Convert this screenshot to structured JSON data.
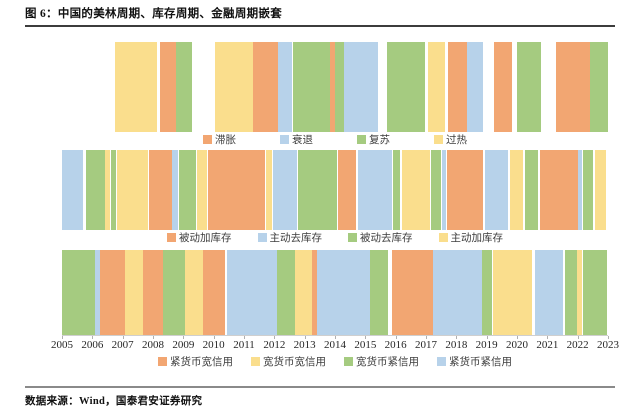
{
  "header": {
    "title": "图 6：中国的美林周期、库存周期、金融周期嵌套"
  },
  "footer": {
    "source": "数据来源：Wind，国泰君安证券研究"
  },
  "chart_data": {
    "type": "bar",
    "subtype": "categorical-timeline-bands",
    "title": "中国的美林周期、库存周期、金融周期嵌套",
    "x_axis": {
      "min": 2005,
      "max": 2023,
      "ticks": [
        "2005",
        "2006",
        "2007",
        "2008",
        "2009",
        "2010",
        "2011",
        "2012",
        "2013",
        "2014",
        "2015",
        "2016",
        "2017",
        "2018",
        "2019",
        "2020",
        "2021",
        "2022",
        "2023"
      ]
    },
    "colors": {
      "orange": "#F2A672",
      "yellow": "#FADE8D",
      "green": "#A5CB80",
      "blue": "#B7D2EA"
    },
    "strips": [
      {
        "name": "美林周期",
        "legend": [
          {
            "label": "滞胀",
            "color": "orange"
          },
          {
            "label": "衰退",
            "color": "blue"
          },
          {
            "label": "复苏",
            "color": "green"
          },
          {
            "label": "过热",
            "color": "yellow"
          }
        ],
        "segments": [
          {
            "phase": "过热",
            "color": "yellow",
            "from": 2006.75,
            "to": 2008.13
          },
          {
            "phase": "滞胀",
            "color": "orange",
            "from": 2008.23,
            "to": 2008.76
          },
          {
            "phase": "复苏",
            "color": "green",
            "from": 2008.76,
            "to": 2009.29
          },
          {
            "phase": "过热",
            "color": "yellow",
            "from": 2010.04,
            "to": 2011.3
          },
          {
            "phase": "滞胀",
            "color": "orange",
            "from": 2011.3,
            "to": 2012.12
          },
          {
            "phase": "衰退",
            "color": "blue",
            "from": 2012.12,
            "to": 2012.58
          },
          {
            "phase": "复苏",
            "color": "green",
            "from": 2012.62,
            "to": 2013.84
          },
          {
            "phase": "滞胀",
            "color": "orange",
            "from": 2013.84,
            "to": 2014.0
          },
          {
            "phase": "复苏",
            "color": "green",
            "from": 2014.0,
            "to": 2014.3
          },
          {
            "phase": "衰退",
            "color": "blue",
            "from": 2014.3,
            "to": 2015.42
          },
          {
            "phase": "复苏",
            "color": "green",
            "from": 2015.72,
            "to": 2016.97
          },
          {
            "phase": "过热",
            "color": "yellow",
            "from": 2017.07,
            "to": 2017.63
          },
          {
            "phase": "滞胀",
            "color": "orange",
            "from": 2017.73,
            "to": 2018.35
          },
          {
            "phase": "衰退",
            "color": "blue",
            "from": 2018.35,
            "to": 2018.88
          },
          {
            "phase": "滞胀",
            "color": "orange",
            "from": 2019.24,
            "to": 2019.84
          },
          {
            "phase": "复苏",
            "color": "green",
            "from": 2020.0,
            "to": 2020.79
          },
          {
            "phase": "滞胀",
            "color": "orange",
            "from": 2021.29,
            "to": 2022.41
          },
          {
            "phase": "复苏",
            "color": "green",
            "from": 2022.41,
            "to": 2023.0
          }
        ]
      },
      {
        "name": "库存周期",
        "legend": [
          {
            "label": "被动加库存",
            "color": "orange"
          },
          {
            "label": "主动去库存",
            "color": "blue"
          },
          {
            "label": "被动去库存",
            "color": "green"
          },
          {
            "label": "主动加库存",
            "color": "yellow"
          }
        ],
        "segments": [
          {
            "phase": "主动去库存",
            "color": "blue",
            "from": 2005.0,
            "to": 2005.69
          },
          {
            "phase": "被动去库存",
            "color": "green",
            "from": 2005.79,
            "to": 2006.42
          },
          {
            "phase": "主动加库存",
            "color": "yellow",
            "from": 2006.42,
            "to": 2006.58
          },
          {
            "phase": "被动去库存",
            "color": "green",
            "from": 2006.62,
            "to": 2006.78
          },
          {
            "phase": "主动加库存",
            "color": "yellow",
            "from": 2006.81,
            "to": 2007.84
          },
          {
            "phase": "被动加库存",
            "color": "orange",
            "from": 2007.87,
            "to": 2008.63
          },
          {
            "phase": "主动去库存",
            "color": "blue",
            "from": 2008.63,
            "to": 2008.82
          },
          {
            "phase": "被动去库存",
            "color": "green",
            "from": 2008.86,
            "to": 2009.42
          },
          {
            "phase": "主动加库存",
            "color": "yellow",
            "from": 2009.45,
            "to": 2009.78
          },
          {
            "phase": "被动加库存",
            "color": "orange",
            "from": 2009.81,
            "to": 2011.69
          },
          {
            "phase": "主动加库存",
            "color": "yellow",
            "from": 2011.73,
            "to": 2011.92
          },
          {
            "phase": "主动去库存",
            "color": "blue",
            "from": 2011.96,
            "to": 2012.75
          },
          {
            "phase": "被动去库存",
            "color": "green",
            "from": 2012.78,
            "to": 2014.07
          },
          {
            "phase": "被动加库存",
            "color": "orange",
            "from": 2014.1,
            "to": 2014.69
          },
          {
            "phase": "主动去库存",
            "color": "blue",
            "from": 2014.76,
            "to": 2015.88
          },
          {
            "phase": "被动去库存",
            "color": "green",
            "from": 2015.91,
            "to": 2016.14
          },
          {
            "phase": "主动加库存",
            "color": "yellow",
            "from": 2016.21,
            "to": 2017.13
          },
          {
            "phase": "被动去库存",
            "color": "green",
            "from": 2017.17,
            "to": 2017.5
          },
          {
            "phase": "主动去库存",
            "color": "blue",
            "from": 2017.53,
            "to": 2017.66
          },
          {
            "phase": "被动加库存",
            "color": "orange",
            "from": 2017.69,
            "to": 2018.88
          },
          {
            "phase": "主动去库存",
            "color": "blue",
            "from": 2018.95,
            "to": 2019.7
          },
          {
            "phase": "主动加库存",
            "color": "yellow",
            "from": 2019.77,
            "to": 2020.2
          },
          {
            "phase": "被动去库存",
            "color": "green",
            "from": 2020.27,
            "to": 2020.69
          },
          {
            "phase": "被动加库存",
            "color": "orange",
            "from": 2020.76,
            "to": 2022.01
          },
          {
            "phase": "主动去库存",
            "color": "blue",
            "from": 2022.01,
            "to": 2022.14
          },
          {
            "phase": "被动去库存",
            "color": "green",
            "from": 2022.18,
            "to": 2022.51
          },
          {
            "phase": "主动加库存",
            "color": "yellow",
            "from": 2022.57,
            "to": 2022.94
          }
        ]
      },
      {
        "name": "金融周期",
        "legend": [
          {
            "label": "紧货币宽信用",
            "color": "orange"
          },
          {
            "label": "宽货币宽信用",
            "color": "yellow"
          },
          {
            "label": "宽货币紧信用",
            "color": "green"
          },
          {
            "label": "紧货币紧信用",
            "color": "blue"
          }
        ],
        "segments": [
          {
            "phase": "宽货币紧信用",
            "color": "green",
            "from": 2005.0,
            "to": 2006.09
          },
          {
            "phase": "紧货币紧信用",
            "color": "blue",
            "from": 2006.09,
            "to": 2006.25
          },
          {
            "phase": "紧货币宽信用",
            "color": "orange",
            "from": 2006.25,
            "to": 2007.08
          },
          {
            "phase": "宽货币宽信用",
            "color": "yellow",
            "from": 2007.08,
            "to": 2007.67
          },
          {
            "phase": "紧货币宽信用",
            "color": "orange",
            "from": 2007.67,
            "to": 2008.33
          },
          {
            "phase": "宽货币紧信用",
            "color": "green",
            "from": 2008.33,
            "to": 2009.06
          },
          {
            "phase": "宽货币宽信用",
            "color": "yellow",
            "from": 2009.06,
            "to": 2009.65
          },
          {
            "phase": "紧货币宽信用",
            "color": "orange",
            "from": 2009.65,
            "to": 2010.37
          },
          {
            "phase": "紧货币紧信用",
            "color": "blue",
            "from": 2010.44,
            "to": 2012.09
          },
          {
            "phase": "宽货币紧信用",
            "color": "green",
            "from": 2012.09,
            "to": 2012.68
          },
          {
            "phase": "宽货币宽信用",
            "color": "yellow",
            "from": 2012.68,
            "to": 2013.24
          },
          {
            "phase": "紧货币宽信用",
            "color": "orange",
            "from": 2013.24,
            "to": 2013.41
          },
          {
            "phase": "紧货币紧信用",
            "color": "blue",
            "from": 2013.41,
            "to": 2015.16
          },
          {
            "phase": "宽货币紧信用",
            "color": "green",
            "from": 2015.16,
            "to": 2015.75
          },
          {
            "phase": "紧货币宽信用",
            "color": "orange",
            "from": 2015.88,
            "to": 2017.23
          },
          {
            "phase": "紧货币紧信用",
            "color": "blue",
            "from": 2017.23,
            "to": 2018.85
          },
          {
            "phase": "宽货币紧信用",
            "color": "green",
            "from": 2018.85,
            "to": 2019.18
          },
          {
            "phase": "宽货币宽信用",
            "color": "yellow",
            "from": 2019.21,
            "to": 2020.5
          },
          {
            "phase": "紧货币紧信用",
            "color": "blue",
            "from": 2020.6,
            "to": 2021.52
          },
          {
            "phase": "宽货币紧信用",
            "color": "green",
            "from": 2021.59,
            "to": 2021.98
          },
          {
            "phase": "宽货币宽信用",
            "color": "yellow",
            "from": 2021.98,
            "to": 2022.14
          },
          {
            "phase": "宽货币紧信用",
            "color": "green",
            "from": 2022.18,
            "to": 2022.97
          }
        ]
      }
    ]
  }
}
